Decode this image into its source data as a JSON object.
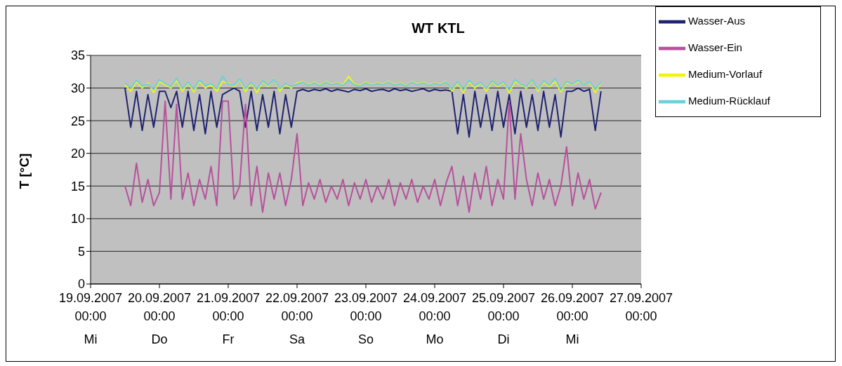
{
  "chart_data": {
    "type": "line",
    "title": "WT KTL",
    "ylabel": "T [°C]",
    "x": [
      "2007-09-19T12:00",
      "2007-09-19T14:00",
      "2007-09-19T16:00",
      "2007-09-19T18:00",
      "2007-09-19T20:00",
      "2007-09-19T22:00",
      "2007-09-20T00:00",
      "2007-09-20T02:00",
      "2007-09-20T04:00",
      "2007-09-20T06:00",
      "2007-09-20T08:00",
      "2007-09-20T10:00",
      "2007-09-20T12:00",
      "2007-09-20T14:00",
      "2007-09-20T16:00",
      "2007-09-20T18:00",
      "2007-09-20T20:00",
      "2007-09-20T22:00",
      "2007-09-21T00:00",
      "2007-09-21T02:00",
      "2007-09-21T04:00",
      "2007-09-21T06:00",
      "2007-09-21T08:00",
      "2007-09-21T10:00",
      "2007-09-21T12:00",
      "2007-09-21T14:00",
      "2007-09-21T16:00",
      "2007-09-21T18:00",
      "2007-09-21T20:00",
      "2007-09-21T22:00",
      "2007-09-22T00:00",
      "2007-09-22T02:00",
      "2007-09-22T04:00",
      "2007-09-22T06:00",
      "2007-09-22T08:00",
      "2007-09-22T10:00",
      "2007-09-22T12:00",
      "2007-09-22T14:00",
      "2007-09-22T16:00",
      "2007-09-22T18:00",
      "2007-09-22T20:00",
      "2007-09-22T22:00",
      "2007-09-23T00:00",
      "2007-09-23T02:00",
      "2007-09-23T04:00",
      "2007-09-23T06:00",
      "2007-09-23T08:00",
      "2007-09-23T10:00",
      "2007-09-23T12:00",
      "2007-09-23T14:00",
      "2007-09-23T16:00",
      "2007-09-23T18:00",
      "2007-09-23T20:00",
      "2007-09-23T22:00",
      "2007-09-24T00:00",
      "2007-09-24T02:00",
      "2007-09-24T04:00",
      "2007-09-24T06:00",
      "2007-09-24T08:00",
      "2007-09-24T10:00",
      "2007-09-24T12:00",
      "2007-09-24T14:00",
      "2007-09-24T16:00",
      "2007-09-24T18:00",
      "2007-09-24T20:00",
      "2007-09-24T22:00",
      "2007-09-25T00:00",
      "2007-09-25T02:00",
      "2007-09-25T04:00",
      "2007-09-25T06:00",
      "2007-09-25T08:00",
      "2007-09-25T10:00",
      "2007-09-25T12:00",
      "2007-09-25T14:00",
      "2007-09-25T16:00",
      "2007-09-25T18:00",
      "2007-09-25T20:00",
      "2007-09-25T22:00",
      "2007-09-26T00:00",
      "2007-09-26T02:00",
      "2007-09-26T04:00",
      "2007-09-26T06:00",
      "2007-09-26T08:00",
      "2007-09-26T10:00"
    ],
    "series": [
      {
        "name": "Wasser-Aus",
        "color": "#1f2370",
        "values": [
          30,
          24,
          29.5,
          23.5,
          29,
          24,
          29.5,
          29.5,
          27,
          29.5,
          24,
          29.5,
          23.5,
          29,
          23,
          29.5,
          24,
          29,
          29.5,
          30,
          29.5,
          24,
          29.5,
          23.5,
          29,
          24,
          29.5,
          23,
          29,
          24,
          29.5,
          29.8,
          29.5,
          29.8,
          29.6,
          29.9,
          29.5,
          29.8,
          29.6,
          29.4,
          29.8,
          29.6,
          29.9,
          29.5,
          29.7,
          29.8,
          29.5,
          29.9,
          29.6,
          29.8,
          29.5,
          29.7,
          29.9,
          29.5,
          29.8,
          29.6,
          29.7,
          29.5,
          23,
          29,
          22.5,
          29.5,
          24,
          29,
          23.5,
          29.5,
          24,
          29,
          23,
          29.5,
          24,
          29,
          23.5,
          29.5,
          24,
          29,
          22.5,
          29.5,
          29.5,
          30,
          29.5,
          29.8,
          23.5,
          29.5
        ]
      },
      {
        "name": "Wasser-Ein",
        "color": "#b8509c",
        "values": [
          15,
          12,
          18.5,
          12.5,
          16,
          12,
          14,
          28,
          13,
          27.5,
          13,
          17,
          12,
          16,
          13,
          18,
          12,
          28,
          28,
          13,
          15,
          27.5,
          12,
          18,
          11,
          17,
          13,
          17,
          12,
          16,
          23,
          12,
          15.5,
          13,
          16,
          12.5,
          15,
          13,
          16,
          12,
          15.5,
          13,
          16,
          12.5,
          15,
          13,
          16,
          12,
          15.5,
          13,
          16,
          12.5,
          15,
          13,
          16,
          12,
          15.5,
          18,
          12,
          16.5,
          11,
          17,
          13,
          18,
          12,
          16,
          13,
          28,
          13,
          23,
          16,
          12,
          17,
          13,
          16,
          12,
          15,
          21,
          12,
          17,
          13,
          16,
          11.5,
          14
        ]
      },
      {
        "name": "Medium-Vorlauf",
        "color": "#f2f21a",
        "values": [
          30.5,
          29.5,
          31,
          30,
          30.8,
          29.3,
          31,
          30.5,
          30,
          31.2,
          29.5,
          30.8,
          29.4,
          31,
          30,
          30.5,
          29.5,
          31,
          30.8,
          30.2,
          31.3,
          29.5,
          30.8,
          29.3,
          31,
          30.2,
          31.5,
          29.5,
          30.6,
          30,
          30.8,
          31,
          30.5,
          30.9,
          30.4,
          31,
          30.6,
          30.8,
          30.5,
          31.8,
          30.6,
          30.4,
          30.9,
          30.5,
          30.8,
          30.6,
          31,
          30.5,
          30.8,
          30.4,
          31,
          30.6,
          30.9,
          30.5,
          30.8,
          30.6,
          31,
          29.5,
          30.8,
          29.3,
          31,
          30,
          30.8,
          29.5,
          31,
          30.2,
          30.9,
          29.3,
          31,
          30.5,
          30,
          31.2,
          29.5,
          30.9,
          30.2,
          31,
          29.4,
          30.8,
          30.5,
          31,
          30.6,
          30.9,
          29.3,
          30.8
        ]
      },
      {
        "name": "Medium-Rücklauf",
        "color": "#6ccfdc",
        "values": [
          30.8,
          30,
          31.2,
          30.3,
          30.6,
          29.8,
          31.3,
          30.7,
          30.2,
          31.5,
          29.9,
          30.9,
          29.8,
          31.2,
          30.3,
          30.7,
          29.9,
          31.8,
          30.6,
          30.4,
          31.4,
          29.9,
          30.9,
          29.8,
          31.1,
          30.4,
          31.4,
          29.9,
          30.7,
          30.2,
          30.6,
          30.9,
          30.4,
          30.8,
          30.3,
          30.9,
          30.5,
          30.7,
          30.4,
          31.2,
          30.5,
          30.3,
          30.8,
          30.4,
          30.7,
          30.5,
          30.9,
          30.4,
          30.7,
          30.3,
          30.9,
          30.5,
          30.8,
          30.4,
          30.7,
          30.5,
          30.9,
          29.8,
          31,
          29.7,
          31.2,
          30.3,
          30.9,
          29.9,
          31.1,
          30.4,
          31,
          29.7,
          31.3,
          30.6,
          30.2,
          31.3,
          29.8,
          31.1,
          30.4,
          31.5,
          29.7,
          31,
          30.6,
          31.2,
          30.5,
          31,
          29.8,
          30.9
        ]
      }
    ],
    "xlim": [
      "2007-09-19T00:00",
      "2007-09-27T00:00"
    ],
    "xticks": [
      {
        "value": "2007-09-19T00:00",
        "label": "19.09.2007\n00:00\nMi"
      },
      {
        "value": "2007-09-20T00:00",
        "label": "20.09.2007\n00:00\nDo"
      },
      {
        "value": "2007-09-21T00:00",
        "label": "21.09.2007\n00:00\nFr"
      },
      {
        "value": "2007-09-22T00:00",
        "label": "22.09.2007\n00:00\nSa"
      },
      {
        "value": "2007-09-23T00:00",
        "label": "23.09.2007\n00:00\nSo"
      },
      {
        "value": "2007-09-24T00:00",
        "label": "24.09.2007\n00:00\nMo"
      },
      {
        "value": "2007-09-25T00:00",
        "label": "25.09.2007\n00:00\nDi"
      },
      {
        "value": "2007-09-26T00:00",
        "label": "26.09.2007\n00:00\nMi"
      },
      {
        "value": "2007-09-27T00:00",
        "label": "27.09.2007\n00:00\n"
      }
    ],
    "ylim": [
      0,
      35
    ],
    "yticks": [
      0,
      5,
      10,
      15,
      20,
      25,
      30,
      35
    ],
    "grid": "y",
    "legend": "top right",
    "marker": "none",
    "line_style": "solid"
  }
}
